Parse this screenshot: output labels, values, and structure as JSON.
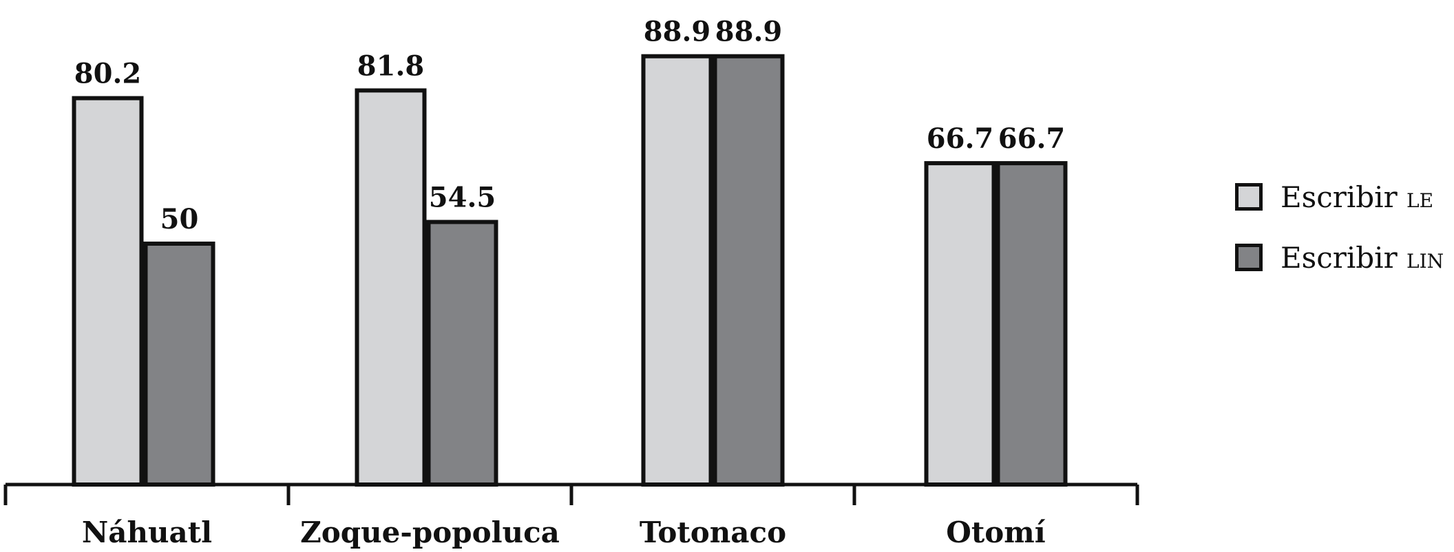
{
  "chart_data": {
    "type": "bar",
    "categories": [
      "Náhuatl",
      "Zoque-popoluca",
      "Totonaco",
      "Otomí"
    ],
    "series": [
      {
        "name": "Escribir LE",
        "base": "Escribir",
        "tag": "LE",
        "color": "#d4d5d7",
        "values": [
          80.2,
          81.8,
          88.9,
          66.7
        ]
      },
      {
        "name": "Escribir LIN",
        "base": "Escribir",
        "tag": "LIN",
        "color": "#828386",
        "values": [
          50,
          54.5,
          88.9,
          66.7
        ]
      }
    ],
    "value_labels": [
      [
        "80.2",
        "81.8",
        "88.9",
        "66.7"
      ],
      [
        "50",
        "54.5",
        "88.9",
        "66.7"
      ]
    ],
    "ylim": [
      0,
      100
    ],
    "title": "",
    "xlabel": "",
    "ylabel": "",
    "grid": false,
    "legend_position": "right"
  }
}
